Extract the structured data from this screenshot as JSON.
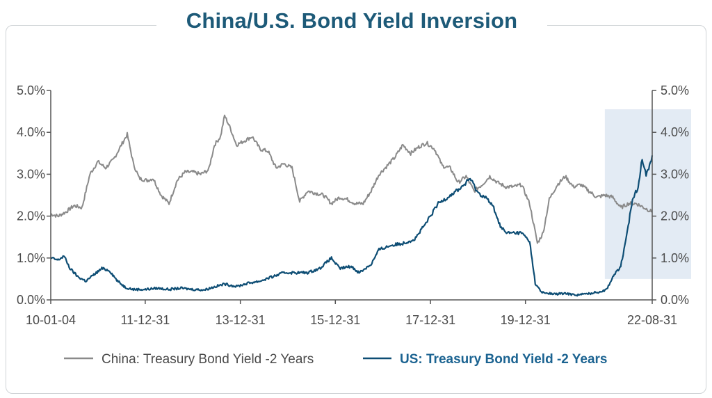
{
  "chart_data": {
    "type": "line",
    "title": "China/U.S. Bond Yield Inversion",
    "xlabel": "",
    "ylabel": "",
    "x_range": [
      "2010-01-04",
      "2022-08-31"
    ],
    "x_tick_labels": [
      "10-01-04",
      "11-12-31",
      "13-12-31",
      "15-12-31",
      "17-12-31",
      "19-12-31",
      "22-08-31"
    ],
    "x_tick_dates": [
      "2010-01-04",
      "2011-12-31",
      "2013-12-31",
      "2015-12-31",
      "2017-12-31",
      "2019-12-31",
      "2022-08-31"
    ],
    "ylim": [
      0,
      5
    ],
    "y_tick_labels": [
      "0.0%",
      "1.0%",
      "2.0%",
      "3.0%",
      "4.0%",
      "5.0%"
    ],
    "y_tick_values": [
      0,
      1,
      2,
      3,
      4,
      5
    ],
    "secondary_y_axis": true,
    "grid": false,
    "legend_position": "bottom",
    "highlight_region": {
      "x_start": "2021-09-01",
      "x_end": "2022-08-31",
      "y_start": 0.5,
      "y_end": 4.55,
      "color": "#e3ebf4"
    },
    "series": [
      {
        "name": "China: Treasury Bond Yield -2 Years",
        "color": "#8a8a8a",
        "points": [
          [
            "2010-01-04",
            2.05
          ],
          [
            "2010-03-01",
            2.0
          ],
          [
            "2010-05-01",
            2.1
          ],
          [
            "2010-07-01",
            2.25
          ],
          [
            "2010-09-01",
            2.2
          ],
          [
            "2010-11-01",
            3.0
          ],
          [
            "2011-01-01",
            3.3
          ],
          [
            "2011-03-01",
            3.15
          ],
          [
            "2011-05-01",
            3.35
          ],
          [
            "2011-07-01",
            3.7
          ],
          [
            "2011-08-15",
            3.95
          ],
          [
            "2011-10-01",
            3.25
          ],
          [
            "2011-11-15",
            2.9
          ],
          [
            "2012-01-15",
            2.85
          ],
          [
            "2012-03-01",
            2.9
          ],
          [
            "2012-05-01",
            2.5
          ],
          [
            "2012-07-01",
            2.3
          ],
          [
            "2012-09-01",
            2.85
          ],
          [
            "2012-11-01",
            3.05
          ],
          [
            "2013-01-01",
            3.05
          ],
          [
            "2013-03-01",
            3.0
          ],
          [
            "2013-05-01",
            3.1
          ],
          [
            "2013-06-15",
            3.7
          ],
          [
            "2013-08-01",
            3.9
          ],
          [
            "2013-09-01",
            4.4
          ],
          [
            "2013-10-15",
            4.1
          ],
          [
            "2013-12-01",
            3.7
          ],
          [
            "2014-02-01",
            3.8
          ],
          [
            "2014-04-01",
            3.9
          ],
          [
            "2014-06-01",
            3.6
          ],
          [
            "2014-08-01",
            3.55
          ],
          [
            "2014-10-01",
            3.15
          ],
          [
            "2014-12-01",
            3.25
          ],
          [
            "2015-02-01",
            3.15
          ],
          [
            "2015-04-01",
            2.35
          ],
          [
            "2015-06-01",
            2.6
          ],
          [
            "2015-08-01",
            2.55
          ],
          [
            "2015-10-01",
            2.5
          ],
          [
            "2015-12-01",
            2.3
          ],
          [
            "2016-02-01",
            2.45
          ],
          [
            "2016-04-01",
            2.4
          ],
          [
            "2016-06-01",
            2.3
          ],
          [
            "2016-08-01",
            2.3
          ],
          [
            "2016-10-01",
            2.6
          ],
          [
            "2016-12-01",
            3.0
          ],
          [
            "2017-02-01",
            3.2
          ],
          [
            "2017-04-01",
            3.4
          ],
          [
            "2017-06-01",
            3.7
          ],
          [
            "2017-08-01",
            3.5
          ],
          [
            "2017-10-01",
            3.65
          ],
          [
            "2017-12-01",
            3.75
          ],
          [
            "2018-02-01",
            3.6
          ],
          [
            "2018-04-01",
            3.2
          ],
          [
            "2018-06-01",
            3.15
          ],
          [
            "2018-08-01",
            2.8
          ],
          [
            "2018-10-01",
            2.95
          ],
          [
            "2018-12-01",
            2.6
          ],
          [
            "2019-02-01",
            2.75
          ],
          [
            "2019-04-01",
            2.95
          ],
          [
            "2019-06-01",
            2.8
          ],
          [
            "2019-08-01",
            2.7
          ],
          [
            "2019-10-01",
            2.7
          ],
          [
            "2019-12-01",
            2.75
          ],
          [
            "2020-02-01",
            2.3
          ],
          [
            "2020-04-01",
            1.35
          ],
          [
            "2020-05-15",
            1.6
          ],
          [
            "2020-07-01",
            2.4
          ],
          [
            "2020-09-01",
            2.75
          ],
          [
            "2020-11-01",
            2.95
          ],
          [
            "2021-01-01",
            2.7
          ],
          [
            "2021-03-01",
            2.75
          ],
          [
            "2021-05-01",
            2.6
          ],
          [
            "2021-07-01",
            2.45
          ],
          [
            "2021-09-01",
            2.5
          ],
          [
            "2021-11-01",
            2.45
          ],
          [
            "2022-01-01",
            2.2
          ],
          [
            "2022-03-01",
            2.3
          ],
          [
            "2022-05-01",
            2.3
          ],
          [
            "2022-07-01",
            2.2
          ],
          [
            "2022-08-31",
            2.1
          ]
        ]
      },
      {
        "name": "US: Treasury Bond Yield -2 Years",
        "color": "#0d4d74",
        "points": [
          [
            "2010-01-04",
            1.0
          ],
          [
            "2010-03-01",
            0.95
          ],
          [
            "2010-04-15",
            1.05
          ],
          [
            "2010-06-01",
            0.75
          ],
          [
            "2010-08-01",
            0.55
          ],
          [
            "2010-10-01",
            0.45
          ],
          [
            "2010-12-01",
            0.6
          ],
          [
            "2011-02-01",
            0.75
          ],
          [
            "2011-04-01",
            0.7
          ],
          [
            "2011-06-01",
            0.45
          ],
          [
            "2011-08-01",
            0.3
          ],
          [
            "2011-10-01",
            0.25
          ],
          [
            "2012-01-01",
            0.25
          ],
          [
            "2012-04-01",
            0.28
          ],
          [
            "2012-07-01",
            0.25
          ],
          [
            "2012-10-01",
            0.28
          ],
          [
            "2013-01-01",
            0.25
          ],
          [
            "2013-04-01",
            0.24
          ],
          [
            "2013-06-01",
            0.3
          ],
          [
            "2013-09-01",
            0.38
          ],
          [
            "2013-12-01",
            0.32
          ],
          [
            "2014-03-01",
            0.4
          ],
          [
            "2014-06-01",
            0.45
          ],
          [
            "2014-09-01",
            0.55
          ],
          [
            "2014-12-01",
            0.65
          ],
          [
            "2015-03-01",
            0.65
          ],
          [
            "2015-06-01",
            0.65
          ],
          [
            "2015-09-01",
            0.75
          ],
          [
            "2015-12-01",
            1.0
          ],
          [
            "2016-02-01",
            0.75
          ],
          [
            "2016-05-01",
            0.8
          ],
          [
            "2016-07-01",
            0.65
          ],
          [
            "2016-10-01",
            0.85
          ],
          [
            "2016-12-01",
            1.2
          ],
          [
            "2017-03-01",
            1.3
          ],
          [
            "2017-06-01",
            1.35
          ],
          [
            "2017-09-01",
            1.45
          ],
          [
            "2017-12-01",
            1.85
          ],
          [
            "2018-03-01",
            2.3
          ],
          [
            "2018-06-01",
            2.5
          ],
          [
            "2018-09-01",
            2.7
          ],
          [
            "2018-11-01",
            2.9
          ],
          [
            "2019-01-01",
            2.55
          ],
          [
            "2019-03-01",
            2.45
          ],
          [
            "2019-05-01",
            2.2
          ],
          [
            "2019-06-15",
            1.8
          ],
          [
            "2019-08-01",
            1.6
          ],
          [
            "2019-10-01",
            1.6
          ],
          [
            "2019-12-01",
            1.6
          ],
          [
            "2020-02-01",
            1.4
          ],
          [
            "2020-03-15",
            0.4
          ],
          [
            "2020-05-01",
            0.18
          ],
          [
            "2020-08-01",
            0.14
          ],
          [
            "2020-11-01",
            0.15
          ],
          [
            "2021-02-01",
            0.12
          ],
          [
            "2021-05-01",
            0.15
          ],
          [
            "2021-08-01",
            0.2
          ],
          [
            "2021-09-15",
            0.25
          ],
          [
            "2021-11-01",
            0.55
          ],
          [
            "2022-01-01",
            0.8
          ],
          [
            "2022-02-15",
            1.5
          ],
          [
            "2022-04-01",
            2.4
          ],
          [
            "2022-05-15",
            2.7
          ],
          [
            "2022-06-15",
            3.4
          ],
          [
            "2022-07-15",
            2.95
          ],
          [
            "2022-08-31",
            3.45
          ]
        ]
      }
    ]
  }
}
